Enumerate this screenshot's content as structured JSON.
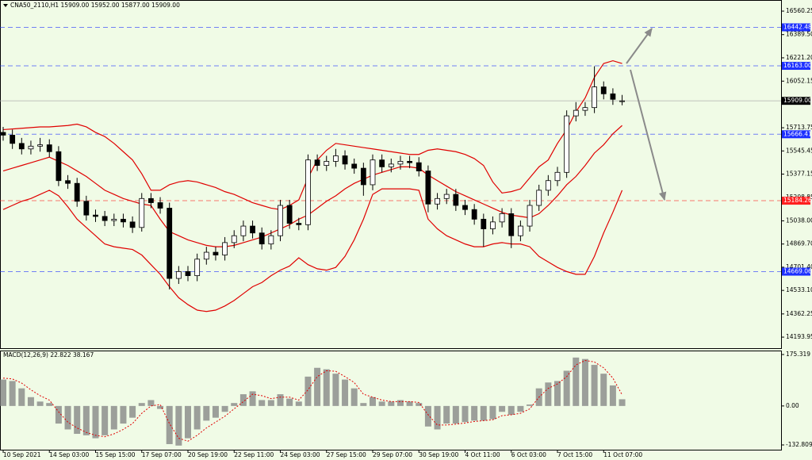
{
  "chart_data": [
    {
      "type": "candlestick",
      "title": "CNA50_2110,H1  15909.00 15952.00 15877.00 15909.00",
      "categories": [
        "10 Sep 2021",
        null,
        null,
        null,
        null,
        "14 Sep 03:00",
        null,
        null,
        null,
        null,
        "15 Sep 15:00",
        null,
        null,
        null,
        null,
        "17 Sep 07:00",
        null,
        null,
        null,
        null,
        "20 Sep 19:00",
        null,
        null,
        null,
        null,
        "22 Sep 11:00",
        null,
        null,
        null,
        null,
        "24 Sep 03:00",
        null,
        null,
        null,
        null,
        "27 Sep 15:00",
        null,
        null,
        null,
        null,
        "29 Sep 07:00",
        null,
        null,
        null,
        null,
        "30 Sep 19:00",
        null,
        null,
        null,
        null,
        "4 Oct 11:00",
        null,
        null,
        null,
        null,
        "6 Oct 03:00",
        null,
        null,
        null,
        null,
        "7 Oct 15:00",
        null,
        null,
        null,
        null,
        "11 Oct 07:00",
        null,
        null
      ],
      "open": [
        15680,
        15660,
        15600,
        15560,
        15580,
        15590,
        15540,
        15330,
        15310,
        15180,
        15080,
        15070,
        15040,
        15050,
        15030,
        14990,
        15200,
        15170,
        15130,
        14620,
        14670,
        14640,
        14760,
        14810,
        14790,
        14880,
        14930,
        15000,
        14950,
        14870,
        14930,
        15150,
        15020,
        15010,
        15480,
        15440,
        15470,
        15510,
        15450,
        15420,
        15300,
        15480,
        15430,
        15450,
        15470,
        15460,
        15400,
        15160,
        15200,
        15230,
        15150,
        15120,
        15050,
        14980,
        15030,
        15090,
        14930,
        15000,
        15150,
        15260,
        15330,
        15390,
        15800,
        15840,
        15860,
        16010,
        15960,
        15909
      ],
      "high": [
        15720,
        15700,
        15640,
        15620,
        15640,
        15630,
        15580,
        15370,
        15350,
        15220,
        15120,
        15110,
        15090,
        15090,
        15070,
        15240,
        15240,
        15210,
        15170,
        14710,
        14710,
        14800,
        14850,
        14850,
        14920,
        14970,
        15040,
        15040,
        14990,
        14970,
        15190,
        15190,
        15060,
        15520,
        15520,
        15510,
        15560,
        15550,
        15490,
        15460,
        15520,
        15520,
        15490,
        15510,
        15510,
        15500,
        15440,
        15240,
        15270,
        15270,
        15190,
        15160,
        15090,
        15070,
        15130,
        15130,
        15040,
        15190,
        15300,
        15370,
        15430,
        15840,
        15900,
        15900,
        16160,
        16050,
        16000,
        15952
      ],
      "low": [
        15620,
        15560,
        15520,
        15520,
        15540,
        15500,
        15290,
        15270,
        15140,
        15040,
        15030,
        15000,
        15000,
        14990,
        14950,
        14960,
        15130,
        15090,
        14540,
        14580,
        14600,
        14600,
        14720,
        14750,
        14750,
        14840,
        14890,
        14910,
        14830,
        14830,
        14890,
        14980,
        14970,
        14970,
        15400,
        15400,
        15430,
        15410,
        15380,
        15220,
        15260,
        15390,
        15390,
        15410,
        15420,
        15360,
        15100,
        15120,
        15160,
        15110,
        15080,
        15010,
        14850,
        14940,
        14990,
        14840,
        14890,
        14960,
        15110,
        15220,
        15290,
        15350,
        15760,
        15800,
        15820,
        15920,
        15880,
        15877
      ],
      "close": [
        15660,
        15600,
        15560,
        15580,
        15590,
        15540,
        15330,
        15310,
        15180,
        15080,
        15070,
        15040,
        15050,
        15030,
        14990,
        15200,
        15170,
        15130,
        14620,
        14670,
        14640,
        14760,
        14810,
        14790,
        14880,
        14930,
        15000,
        14950,
        14870,
        14930,
        15150,
        15020,
        15010,
        15480,
        15440,
        15470,
        15510,
        15450,
        15420,
        15300,
        15480,
        15430,
        15450,
        15470,
        15460,
        15400,
        15160,
        15200,
        15230,
        15150,
        15120,
        15050,
        14980,
        15030,
        15090,
        14930,
        15000,
        15150,
        15260,
        15330,
        15390,
        15800,
        15840,
        15860,
        16010,
        15960,
        15920,
        15909
      ],
      "up_color": "#ffffff",
      "down_color": "#000000",
      "wick_color": "#000000",
      "bollinger": {
        "color": "#e00000",
        "upper": [
          15700,
          15705,
          15710,
          15715,
          15720,
          15720,
          15725,
          15730,
          15740,
          15720,
          15680,
          15650,
          15600,
          15540,
          15480,
          15380,
          15260,
          15260,
          15300,
          15320,
          15330,
          15320,
          15300,
          15280,
          15250,
          15230,
          15200,
          15170,
          15150,
          15130,
          15120,
          15150,
          15190,
          15350,
          15480,
          15550,
          15600,
          15590,
          15580,
          15570,
          15560,
          15550,
          15540,
          15530,
          15520,
          15520,
          15550,
          15560,
          15550,
          15540,
          15520,
          15490,
          15440,
          15320,
          15240,
          15250,
          15270,
          15350,
          15430,
          15480,
          15600,
          15700,
          15830,
          15930,
          16080,
          16180,
          16200,
          16180
        ],
        "middle": [
          15400,
          15420,
          15440,
          15460,
          15480,
          15500,
          15470,
          15440,
          15400,
          15360,
          15310,
          15260,
          15230,
          15200,
          15180,
          15160,
          15150,
          15050,
          14960,
          14930,
          14900,
          14880,
          14860,
          14850,
          14850,
          14860,
          14880,
          14900,
          14920,
          14950,
          14980,
          15010,
          15050,
          15080,
          15130,
          15180,
          15220,
          15270,
          15310,
          15340,
          15370,
          15390,
          15410,
          15430,
          15430,
          15420,
          15370,
          15330,
          15290,
          15250,
          15220,
          15190,
          15160,
          15130,
          15100,
          15080,
          15070,
          15060,
          15090,
          15150,
          15220,
          15300,
          15360,
          15440,
          15530,
          15590,
          15670,
          15730
        ],
        "lower": [
          15120,
          15150,
          15180,
          15200,
          15230,
          15260,
          15220,
          15140,
          15050,
          14990,
          14930,
          14870,
          14850,
          14840,
          14830,
          14790,
          14720,
          14650,
          14560,
          14480,
          14430,
          14390,
          14380,
          14390,
          14420,
          14460,
          14510,
          14560,
          14590,
          14640,
          14680,
          14710,
          14770,
          14720,
          14690,
          14680,
          14700,
          14780,
          14900,
          15050,
          15230,
          15270,
          15270,
          15270,
          15270,
          15260,
          15050,
          14980,
          14930,
          14900,
          14870,
          14850,
          14850,
          14870,
          14880,
          14870,
          14870,
          14850,
          14780,
          14740,
          14700,
          14670,
          14650,
          14650,
          14780,
          14950,
          15100,
          15260
        ]
      },
      "levels": [
        {
          "value": 16442.48,
          "label": "16442.48",
          "color": "#1c2fff"
        },
        {
          "value": 16163,
          "label": "16163.00",
          "color": "#1c2fff"
        },
        {
          "value": 15666.41,
          "label": "15666.41",
          "color": "#1c2fff"
        },
        {
          "value": 15184.26,
          "label": "15184.26",
          "color": "#ff2020"
        },
        {
          "value": 14669.06,
          "label": "14669.06",
          "color": "#1c2fff"
        }
      ],
      "last_price": {
        "value": 15909,
        "label": "15909.00",
        "color": "#000000"
      },
      "ylim": [
        14108,
        16641
      ],
      "yticks": [
        16560.25,
        {
          "value": 16389.5,
          "label": "16389.50"
        },
        {
          "value": 16221.2,
          "label": "16221.20"
        },
        16052.15,
        15713.75,
        15545.45,
        15377.15,
        15208.85,
        {
          "value": 15038,
          "label": "15038.00"
        },
        {
          "value": 14869.7,
          "label": "14869.70"
        },
        {
          "value": 14701.4,
          "label": "14701.40"
        },
        {
          "value": 14533.1,
          "label": "14533.10"
        },
        14362.25,
        14193.95
      ]
    },
    {
      "type": "macd",
      "title": "MACD(12,26,9) 22.822 38.167",
      "series": [
        {
          "color": "#808080",
          "values": [
            90,
            85,
            60,
            30,
            15,
            10,
            -60,
            -80,
            -95,
            -100,
            -110,
            -100,
            -80,
            -60,
            -40,
            10,
            20,
            -10,
            -130,
            -135,
            -110,
            -80,
            -50,
            -40,
            -20,
            10,
            40,
            50,
            20,
            20,
            40,
            25,
            15,
            100,
            130,
            125,
            110,
            90,
            60,
            10,
            30,
            15,
            15,
            20,
            15,
            10,
            -70,
            -80,
            -60,
            -60,
            -55,
            -50,
            -50,
            -45,
            -20,
            -30,
            -20,
            5,
            60,
            80,
            85,
            120,
            165,
            160,
            140,
            110,
            70,
            22.822
          ]
        },
        {
          "color": "#e00000",
          "values": [
            95,
            92,
            78,
            55,
            35,
            20,
            -20,
            -55,
            -75,
            -90,
            -100,
            -105,
            -95,
            -80,
            -60,
            -25,
            0,
            5,
            -60,
            -110,
            -120,
            -100,
            -75,
            -55,
            -35,
            -10,
            15,
            40,
            35,
            25,
            30,
            30,
            20,
            55,
            100,
            120,
            118,
            100,
            80,
            40,
            30,
            20,
            15,
            15,
            15,
            12,
            -30,
            -65,
            -65,
            -62,
            -58,
            -53,
            -50,
            -47,
            -33,
            -30,
            -25,
            -10,
            30,
            60,
            75,
            100,
            140,
            155,
            150,
            130,
            95,
            38.167
          ]
        }
      ],
      "ylim": [
        -151.7,
        186.1
      ],
      "yticks": [
        175.319,
        {
          "value": 0,
          "label": "0.00"
        },
        -132.809
      ]
    }
  ]
}
